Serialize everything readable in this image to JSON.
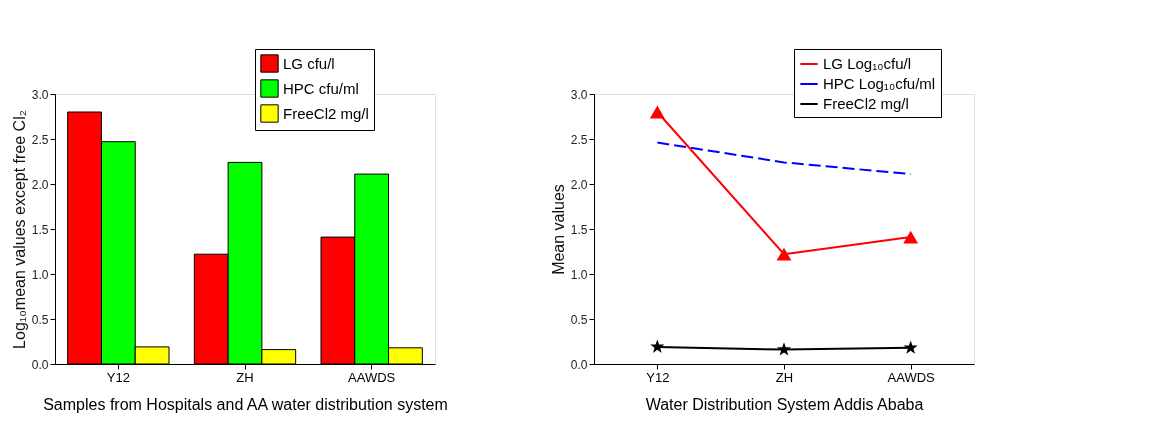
{
  "chart_data": [
    {
      "type": "bar",
      "xlabel": "Samples from Hospitals and AA water distribution system",
      "ylabel": "Log₁₀mean values except free Cl₂",
      "categories": [
        "Y12",
        "ZH",
        "AAWDS"
      ],
      "series": [
        {
          "name": "LG  cfu/l",
          "color": "#ff0000",
          "values": [
            2.8,
            1.22,
            1.41
          ]
        },
        {
          "name": "HPC  cfu/ml",
          "color": "#00ff00",
          "values": [
            2.47,
            2.24,
            2.11
          ]
        },
        {
          "name": "FreeCl2 mg/l",
          "color": "#ffff00",
          "values": [
            0.19,
            0.16,
            0.18
          ]
        }
      ],
      "ylim": [
        0,
        3
      ],
      "yticks": [
        {
          "value": 0,
          "label": "0.0"
        },
        0.5,
        {
          "value": 1,
          "label": "1.0"
        },
        1.5,
        {
          "value": 2,
          "label": "2.0"
        },
        2.5,
        {
          "value": 3,
          "label": "3.0"
        }
      ],
      "grid": false,
      "legend": "top right"
    },
    {
      "type": "line",
      "xlabel": "Water Distribution System Addis Ababa",
      "ylabel": "Mean values",
      "categories": [
        "Y12",
        "ZH",
        "AAWDS"
      ],
      "series": [
        {
          "name": "LG Log₁₀cfu/l",
          "color": "#ff0000",
          "values": [
            2.8,
            1.22,
            1.41
          ],
          "marker": "triangle",
          "line_style": "solid"
        },
        {
          "name": "HPC Log₁₀cfu/ml",
          "color": "#0000ff",
          "values": [
            2.46,
            2.24,
            2.11
          ],
          "marker": "none",
          "line_style": "dashed"
        },
        {
          "name": "FreeCl2 mg/l",
          "color": "#000000",
          "values": [
            0.19,
            0.16,
            0.18
          ],
          "marker": "star",
          "line_style": "solid"
        }
      ],
      "ylim": [
        0,
        3
      ],
      "yticks": [
        {
          "value": 0,
          "label": "0.0"
        },
        0.5,
        {
          "value": 1,
          "label": "1.0"
        },
        1.5,
        {
          "value": 2,
          "label": "2.0"
        },
        2.5,
        {
          "value": 3,
          "label": "3.0"
        }
      ],
      "grid": false,
      "legend": "top right"
    }
  ]
}
